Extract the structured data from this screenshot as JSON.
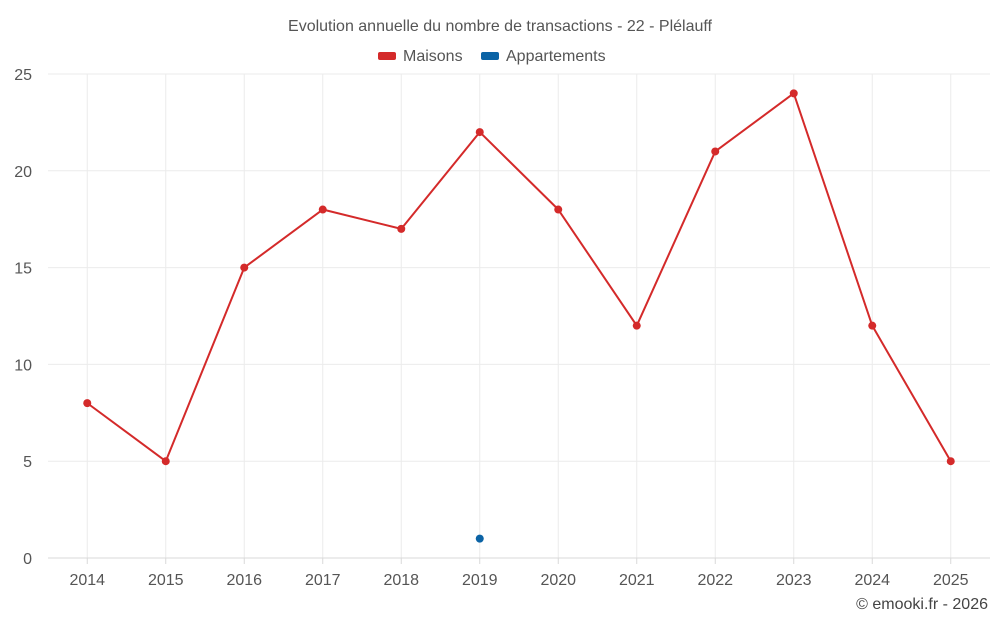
{
  "chart_data": {
    "type": "line",
    "title": "Evolution annuelle du nombre de transactions - 22 - Plélauff",
    "categories": [
      "2014",
      "2015",
      "2016",
      "2017",
      "2018",
      "2019",
      "2020",
      "2021",
      "2022",
      "2023",
      "2024",
      "2025"
    ],
    "series": [
      {
        "name": "Maisons",
        "color": "#d42a2a",
        "values": [
          8,
          5,
          15,
          18,
          17,
          22,
          18,
          12,
          21,
          24,
          12,
          5
        ]
      },
      {
        "name": "Appartements",
        "color": "#0b63a5",
        "values": [
          null,
          null,
          null,
          null,
          null,
          1,
          null,
          null,
          null,
          null,
          null,
          null
        ]
      }
    ],
    "yticks": [
      0,
      5,
      10,
      15,
      20,
      25
    ],
    "ylim": [
      0,
      25
    ],
    "xlabel": "",
    "ylabel": "",
    "grid": true,
    "legend": "top-center"
  },
  "credit": "© emooki.fr - 2026"
}
